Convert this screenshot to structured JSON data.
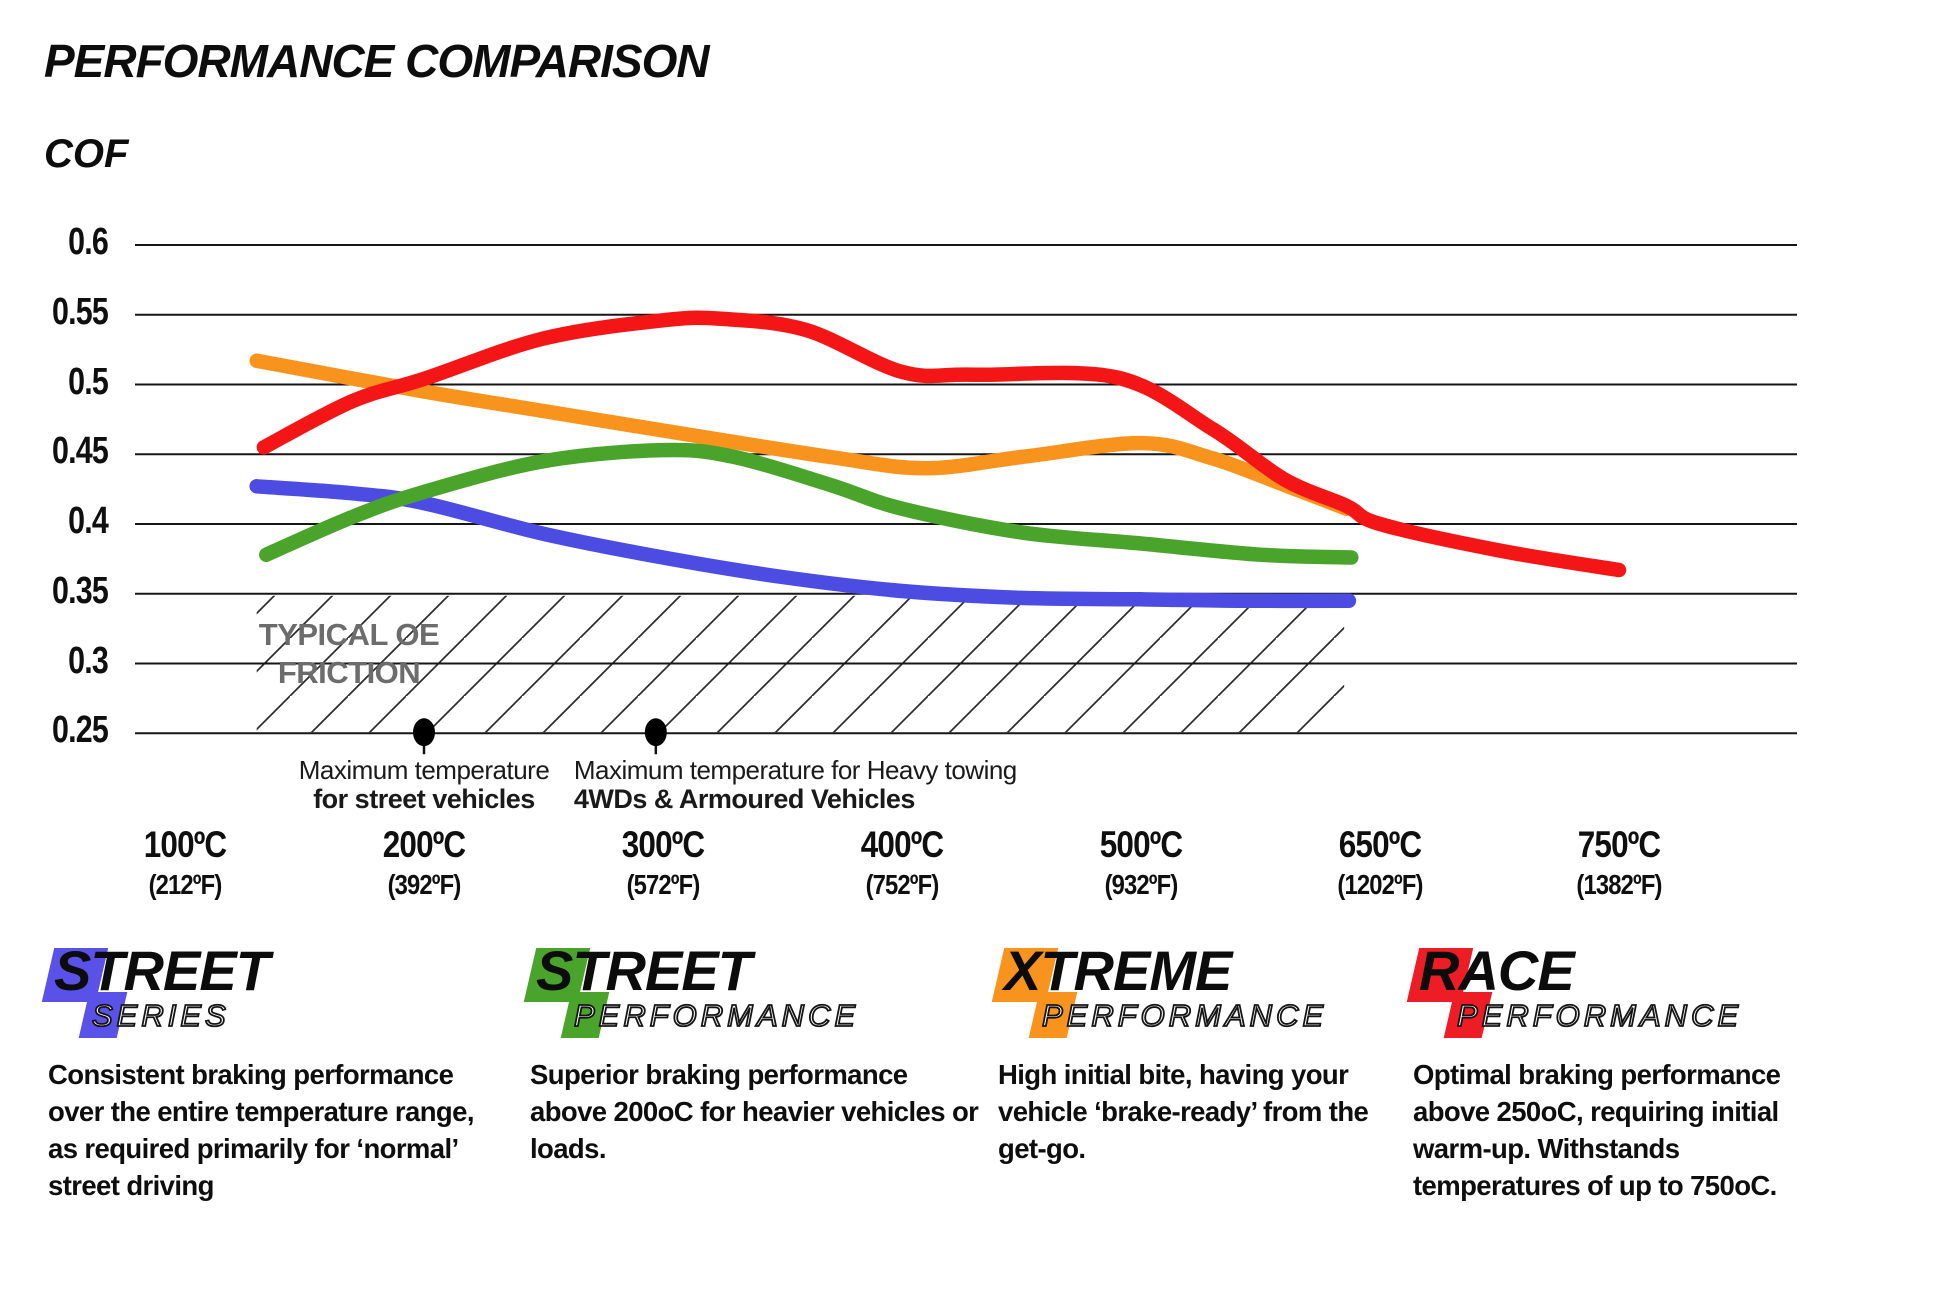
{
  "title": "PERFORMANCE COMPARISON",
  "chart_data": {
    "type": "line",
    "title": "PERFORMANCE COMPARISON",
    "ylabel": "COF",
    "xlabel": "",
    "grid": "horizontal",
    "ylim": [
      0.225,
      0.625
    ],
    "yticks": [
      "0.6",
      "0.55",
      "0.5",
      "0.45",
      "0.4",
      "0.35",
      "0.3",
      "0.25"
    ],
    "ytick_values": [
      0.6,
      0.55,
      0.5,
      0.45,
      0.4,
      0.35,
      0.3,
      0.25
    ],
    "x_unit_note": "category axis, index 0..6",
    "x_categories": [
      {
        "c": "100ºC",
        "f": "(212ºF)"
      },
      {
        "c": "200ºC",
        "f": "(392ºF)"
      },
      {
        "c": "300ºC",
        "f": "(572ºF)"
      },
      {
        "c": "400ºC",
        "f": "(752ºF)"
      },
      {
        "c": "500ºC",
        "f": "(932ºF)"
      },
      {
        "c": "650ºC",
        "f": "(1202ºF)"
      },
      {
        "c": "750ºC",
        "f": "(1382ºF)"
      }
    ],
    "band": {
      "line1": "TYPICAL OE",
      "line2": "FRICTION",
      "cof_top": 0.35,
      "cof_bottom": 0.25,
      "x_from": 0.3,
      "x_to": 4.85
    },
    "annotations": [
      {
        "line1": "Maximum temperature",
        "line2": "for street vehicles",
        "x_index": 1.0,
        "cof": 0.25,
        "align": "center"
      },
      {
        "line1": "Maximum temperature for Heavy towing",
        "line2": "4WDs & Armoured Vehicles",
        "x_index": 1.97,
        "cof": 0.25,
        "align": "left"
      }
    ],
    "series": [
      {
        "name": "Street Series",
        "color": "#4d4ce2",
        "points": [
          [
            0.3,
            0.427
          ],
          [
            0.7,
            0.422
          ],
          [
            1.0,
            0.415
          ],
          [
            1.5,
            0.393
          ],
          [
            2.0,
            0.376
          ],
          [
            2.5,
            0.362
          ],
          [
            3.0,
            0.352
          ],
          [
            3.5,
            0.347
          ],
          [
            4.0,
            0.346
          ],
          [
            4.4,
            0.345
          ],
          [
            4.87,
            0.345
          ]
        ]
      },
      {
        "name": "Xtreme Performance",
        "color": "#f8941e",
        "points": [
          [
            0.3,
            0.517
          ],
          [
            1.0,
            0.495
          ],
          [
            1.5,
            0.481
          ],
          [
            2.0,
            0.467
          ],
          [
            2.7,
            0.448
          ],
          [
            3.1,
            0.44
          ],
          [
            3.5,
            0.448
          ],
          [
            4.0,
            0.458
          ],
          [
            4.3,
            0.447
          ],
          [
            4.6,
            0.428
          ],
          [
            4.86,
            0.411
          ]
        ]
      },
      {
        "name": "Street Performance",
        "color": "#4aa42b",
        "points": [
          [
            0.34,
            0.378
          ],
          [
            0.7,
            0.405
          ],
          [
            1.0,
            0.423
          ],
          [
            1.5,
            0.445
          ],
          [
            2.0,
            0.453
          ],
          [
            2.3,
            0.448
          ],
          [
            2.7,
            0.428
          ],
          [
            3.0,
            0.411
          ],
          [
            3.5,
            0.394
          ],
          [
            4.0,
            0.386
          ],
          [
            4.5,
            0.378
          ],
          [
            4.88,
            0.376
          ]
        ]
      },
      {
        "name": "Race Performance",
        "color": "#f41616",
        "points": [
          [
            0.33,
            0.455
          ],
          [
            0.7,
            0.488
          ],
          [
            1.0,
            0.504
          ],
          [
            1.5,
            0.533
          ],
          [
            2.0,
            0.546
          ],
          [
            2.25,
            0.547
          ],
          [
            2.6,
            0.539
          ],
          [
            3.0,
            0.509
          ],
          [
            3.3,
            0.507
          ],
          [
            3.9,
            0.505
          ],
          [
            4.3,
            0.468
          ],
          [
            4.6,
            0.432
          ],
          [
            4.86,
            0.413
          ],
          [
            5.0,
            0.4
          ],
          [
            5.5,
            0.381
          ],
          [
            6.0,
            0.367
          ]
        ]
      }
    ]
  },
  "legend": [
    {
      "word1": "STREET",
      "word2": "SERIES",
      "color": "#5a51e8",
      "description": "Consistent braking performance over the entire temperature range, as required primarily for ‘normal’ street driving"
    },
    {
      "word1": "STREET",
      "word2": "PERFORMANCE",
      "color": "#4aa42c",
      "description": "Superior braking performance above 200oC for heavier vehicles or loads."
    },
    {
      "word1": "XTREME",
      "word2": "PERFORMANCE",
      "color": "#f8941e",
      "description": "High initial bite, having your vehicle ‘brake-ready’ from the get-go."
    },
    {
      "word1": "RACE",
      "word2": "PERFORMANCE",
      "color": "#ed1c25",
      "description": "Optimal braking performance above 250oC, requiring initial warm-up. Withstands temperatures of up to 750oC."
    }
  ]
}
